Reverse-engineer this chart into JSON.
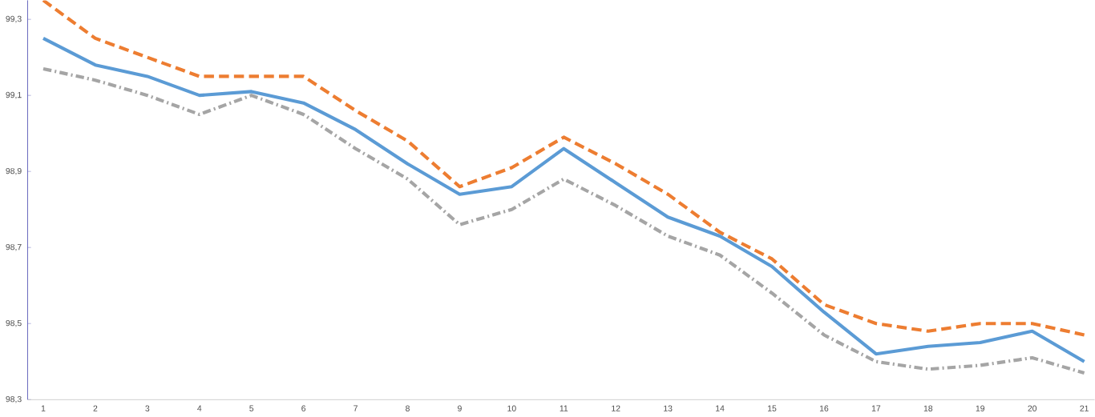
{
  "chart_data": {
    "type": "line",
    "categories": [
      "1",
      "2",
      "3",
      "4",
      "5",
      "6",
      "7",
      "8",
      "9",
      "10",
      "11",
      "12",
      "13",
      "14",
      "15",
      "16",
      "17",
      "18",
      "19",
      "20",
      "21"
    ],
    "series": [
      {
        "color": "#ed7d31",
        "line_style": "dashed",
        "values": [
          99.35,
          99.25,
          99.2,
          99.15,
          99.15,
          99.15,
          99.06,
          98.98,
          98.86,
          98.91,
          98.99,
          98.92,
          98.84,
          98.74,
          98.67,
          98.55,
          98.5,
          98.48,
          98.5,
          98.5,
          98.47
        ]
      },
      {
        "color": "#5b9bd5",
        "line_style": "solid",
        "values": [
          99.25,
          99.18,
          99.15,
          99.1,
          99.11,
          99.08,
          99.01,
          98.92,
          98.84,
          98.86,
          98.96,
          98.87,
          98.78,
          98.73,
          98.65,
          98.53,
          98.42,
          98.44,
          98.45,
          98.48,
          98.4
        ]
      },
      {
        "color": "#a5a5a5",
        "line_style": "dashdot",
        "values": [
          99.17,
          99.14,
          99.1,
          99.05,
          99.1,
          99.05,
          98.96,
          98.88,
          98.76,
          98.8,
          98.88,
          98.81,
          98.73,
          98.68,
          98.58,
          98.47,
          98.4,
          98.38,
          98.39,
          98.41,
          98.37
        ]
      }
    ],
    "ylim": [
      98.3,
      99.35
    ],
    "yticks": [
      {
        "value": 98.3,
        "label": "98,3"
      },
      {
        "value": 98.5,
        "label": "98,5"
      },
      {
        "value": 98.7,
        "label": "98,7"
      },
      {
        "value": 98.9,
        "label": "98,9"
      },
      {
        "value": 99.1,
        "label": "99,1"
      },
      {
        "value": 99.3,
        "label": "99,3"
      }
    ],
    "grid": false,
    "marker": "none"
  }
}
